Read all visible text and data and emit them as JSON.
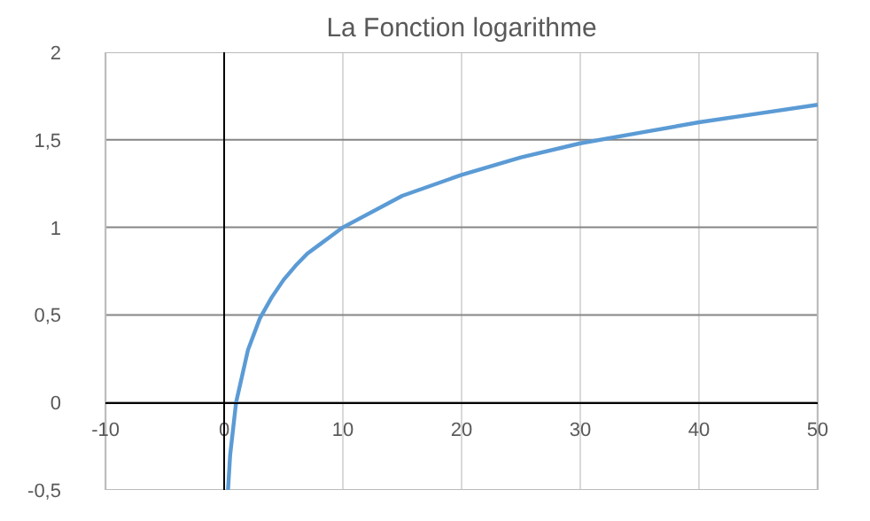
{
  "chart_data": {
    "type": "line",
    "title": "La Fonction logarithme",
    "x": [
      0.32,
      0.5,
      1,
      2,
      3,
      4,
      5,
      6,
      7,
      8,
      9,
      10,
      15,
      20,
      25,
      30,
      35,
      40,
      45,
      50
    ],
    "series": [
      {
        "color": "#5b9bd5",
        "values": [
          -0.5,
          -0.3,
          0,
          0.3,
          0.48,
          0.6,
          0.7,
          0.78,
          0.85,
          0.9,
          0.95,
          1,
          1.18,
          1.3,
          1.4,
          1.48,
          1.54,
          1.6,
          1.65,
          1.7
        ]
      }
    ],
    "xlim": [
      -10,
      50
    ],
    "xticks": [
      -10,
      0,
      10,
      20,
      30,
      40,
      50
    ],
    "ylim": [
      -0.5,
      2
    ],
    "yticks": [
      {
        "value": -0.5,
        "label": "-0,5"
      },
      0,
      {
        "value": 0.5,
        "label": "0,5"
      },
      1,
      {
        "value": 1.5,
        "label": "1,5"
      },
      2
    ],
    "grid": true,
    "marker": "none",
    "line_style": "solid"
  }
}
